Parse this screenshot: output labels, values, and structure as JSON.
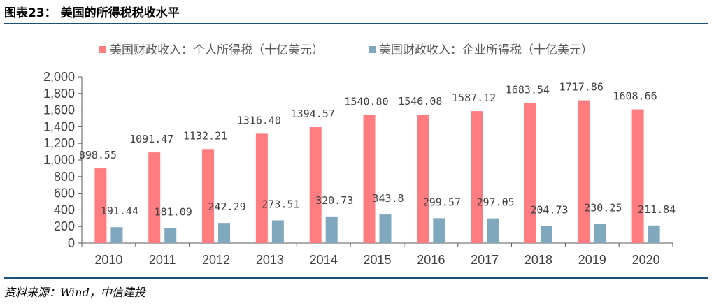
{
  "header": {
    "title": "图表23：  美国的所得税税收水平"
  },
  "footer": {
    "source": "资料来源：Wind，中信建投"
  },
  "chart_data": {
    "type": "bar",
    "categories": [
      "2010",
      "2011",
      "2012",
      "2013",
      "2014",
      "2015",
      "2016",
      "2017",
      "2018",
      "2019",
      "2020"
    ],
    "series": [
      {
        "name": "美国财政收入：个人所得税（十亿美元）",
        "color": "#ff7c80",
        "values": [
          898.55,
          1091.47,
          1132.21,
          1316.4,
          1394.57,
          1540.8,
          1546.08,
          1587.12,
          1683.54,
          1717.86,
          1608.66
        ],
        "labels": [
          "898.55",
          "1091.47",
          "1132.21",
          "1316.40",
          "1394.57",
          "1540.80",
          "1546.08",
          "1587.12",
          "1683.54",
          "1717.86",
          "1608.66"
        ]
      },
      {
        "name": "美国财政收入：企业所得税（十亿美元）",
        "color": "#7fa7be",
        "values": [
          191.44,
          181.09,
          242.29,
          273.51,
          320.73,
          343.8,
          299.57,
          297.05,
          204.73,
          230.25,
          211.84
        ],
        "labels": [
          "191.44",
          "181.09",
          "242.29",
          "273.51",
          "320.73",
          "343.8",
          "299.57",
          "297.05",
          "204.73",
          "230.25",
          "211.84"
        ]
      }
    ],
    "yticks": [
      "0",
      "200",
      "400",
      "600",
      "800",
      "1,000",
      "1,200",
      "1,400",
      "1,600",
      "1,800",
      "2,000"
    ],
    "ylim": [
      0,
      2000
    ],
    "legend": "top",
    "grid": false
  }
}
